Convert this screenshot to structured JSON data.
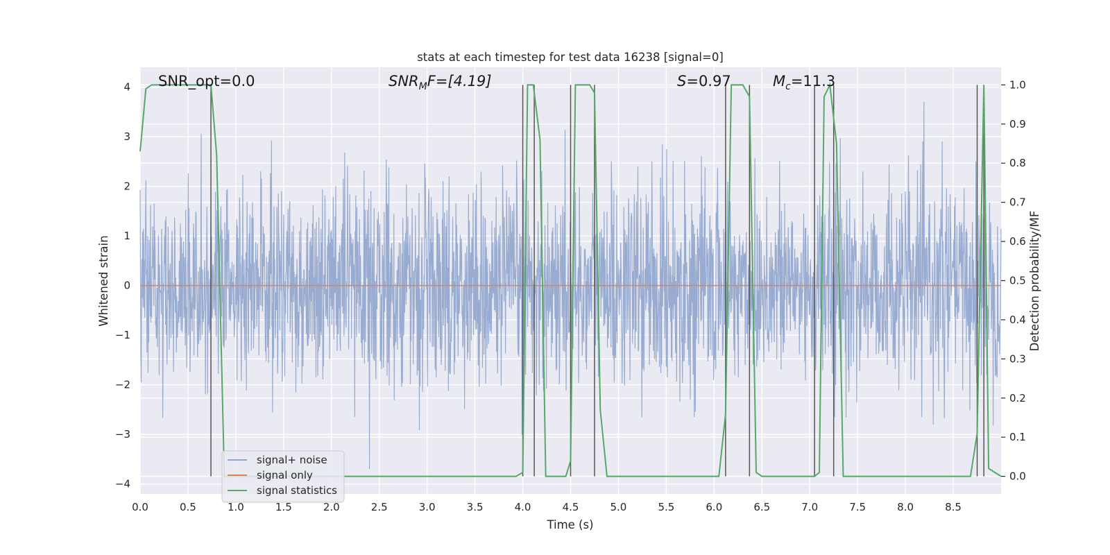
{
  "chart_data": {
    "type": "line",
    "title": "stats at each timestep for test data 16238 [signal=0]",
    "xlabel": "Time (s)",
    "ylabel_left": "Whitened strain",
    "ylabel_right": "Detection probability/MF",
    "xlim": [
      0.0,
      9.0
    ],
    "ylim_left": [
      -4.2,
      4.4
    ],
    "ylim_right": [
      -0.045,
      1.045
    ],
    "grid": true,
    "legend_position": "lower-left",
    "x_ticks": [
      "0.0",
      "0.5",
      "1.0",
      "1.5",
      "2.0",
      "2.5",
      "3.0",
      "3.5",
      "4.0",
      "4.5",
      "5.0",
      "5.5",
      "6.0",
      "6.5",
      "7.0",
      "7.5",
      "8.0",
      "8.5"
    ],
    "y_ticks_left": [
      "4",
      "3",
      "2",
      "1",
      "0",
      "−1",
      "−2",
      "−3",
      "−4"
    ],
    "y_ticks_right": [
      "1.0",
      "0.9",
      "0.8",
      "0.7",
      "0.6",
      "0.5",
      "0.4",
      "0.3",
      "0.2",
      "0.1",
      "0.0"
    ],
    "annotations": {
      "snr_opt": "SNR_opt=0.0",
      "snr_mf_base": "SNR",
      "snr_mf_sub": "M",
      "snr_mf_tail": "F=[4.19]",
      "s_symbol": "S",
      "s_value": "=0.97",
      "mc_symbol": "M",
      "mc_sub": "c",
      "mc_value": "=11.3"
    },
    "series": [
      {
        "name": "signal+ noise",
        "color": "#8fa4cc",
        "description_kind": "noise",
        "t_range": [
          0.0,
          9.0
        ],
        "amplitude_sigma": 1.0
      },
      {
        "name": "signal only",
        "color": "#dd8452",
        "x": [
          0.0,
          9.0
        ],
        "y": [
          0.0,
          0.0
        ]
      },
      {
        "name": "signal statistics",
        "color": "#55a868",
        "axis": "right",
        "x": [
          0.0,
          0.06,
          0.12,
          0.5,
          0.74,
          0.8,
          0.88,
          0.95,
          3.93,
          4.0,
          4.05,
          4.11,
          4.18,
          4.24,
          4.45,
          4.5,
          4.55,
          4.62,
          4.7,
          4.75,
          4.81,
          4.88,
          6.05,
          6.12,
          6.18,
          6.3,
          6.37,
          6.44,
          6.5,
          7.05,
          7.1,
          7.15,
          7.21,
          7.28,
          7.35,
          7.42,
          8.68,
          8.75,
          8.82,
          8.87,
          9.0
        ],
        "y": [
          0.83,
          0.99,
          1.0,
          1.0,
          1.0,
          0.82,
          0.0,
          0.0,
          0.0,
          0.01,
          1.0,
          1.0,
          0.86,
          0.0,
          0.0,
          0.04,
          1.0,
          1.0,
          1.0,
          0.98,
          0.17,
          0.0,
          0.0,
          0.16,
          1.0,
          1.0,
          0.97,
          0.01,
          0.0,
          0.0,
          0.01,
          0.97,
          1.0,
          0.85,
          0.0,
          0.0,
          0.0,
          0.11,
          1.0,
          0.02,
          0.0
        ]
      }
    ],
    "vertical_markers": [
      0.74,
      4.0,
      4.12,
      4.5,
      4.75,
      6.12,
      6.37,
      7.05,
      7.25,
      8.75,
      8.82
    ],
    "legend": [
      "signal+ noise",
      "signal only",
      "signal statistics"
    ]
  }
}
